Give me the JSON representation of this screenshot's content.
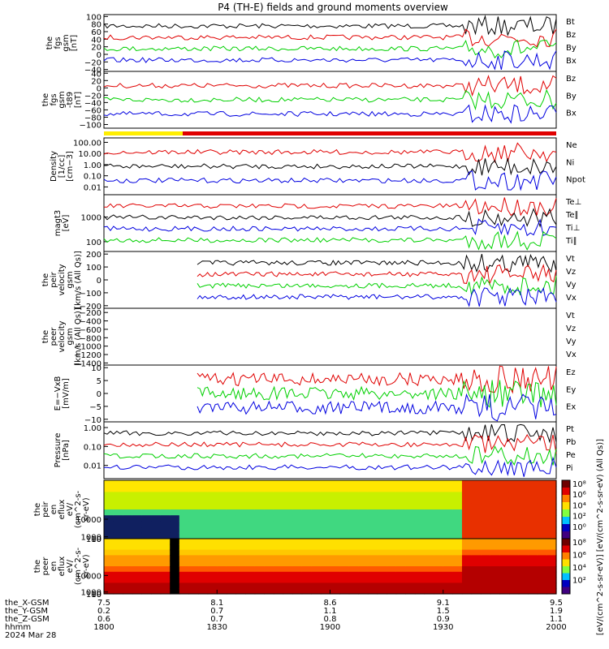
{
  "header": {
    "title": "P4 (TH-E) fields and ground moments overview"
  },
  "colors": {
    "black": "#000000",
    "red": "#e00000",
    "green": "#00d000",
    "blue": "#0000e0",
    "yellow": "#ffee00"
  },
  "time_axis": {
    "hhmm_ticks": [
      "1800",
      "1830",
      "1900",
      "1930",
      "2000"
    ],
    "x_gsm": [
      "7.5",
      "8.1",
      "8.6",
      "9.1",
      "9.5"
    ],
    "y_gsm": [
      "0.2",
      "0.7",
      "1.1",
      "1.5",
      "1.9"
    ],
    "z_gsm": [
      "0.6",
      "0.7",
      "0.8",
      "0.9",
      "1.1"
    ],
    "row_labels": [
      "the_X-GSM",
      "the_Y-GSM",
      "the_Z-GSM",
      "hhmm",
      "2024 Mar 28"
    ]
  },
  "chart_data": [
    {
      "type": "line",
      "id": "fgs",
      "ylabel": [
        "the",
        "fgs",
        "gsm",
        "[nT]"
      ],
      "yticks": [
        "100",
        "80",
        "60",
        "40",
        "20",
        "0",
        "−20",
        "−40"
      ],
      "ylim": [
        -45,
        105
      ],
      "series": [
        {
          "name": "Bt",
          "color": "#000000"
        },
        {
          "name": "Bz",
          "color": "#e00000"
        },
        {
          "name": "By",
          "color": "#00d000"
        },
        {
          "name": "Bx",
          "color": "#0000e0"
        }
      ]
    },
    {
      "type": "line",
      "id": "fgs_t89",
      "ylabel": [
        "the",
        "fgs",
        "gsm",
        "-t89",
        "[nT]"
      ],
      "yticks": [
        "40",
        "20",
        "0",
        "−20",
        "−40",
        "−60",
        "−80",
        "−100"
      ],
      "ylim": [
        -110,
        45
      ],
      "series": [
        {
          "name": "Bz",
          "color": "#e00000"
        },
        {
          "name": "By",
          "color": "#00d000"
        },
        {
          "name": "Bx",
          "color": "#0000e0"
        }
      ]
    },
    {
      "type": "line",
      "id": "density",
      "ylabel": [
        "Density",
        "[1/cc]",
        "[cm−3]"
      ],
      "yticks": [
        "100.00",
        "10.00",
        "1.00",
        "0.10",
        "0.01"
      ],
      "ylim": [
        0.002,
        250
      ],
      "log": true,
      "series": [
        {
          "name": "Ne",
          "color": "#e00000"
        },
        {
          "name": "Ni",
          "color": "#000000"
        },
        {
          "name": "Npot",
          "color": "#0000e0"
        }
      ]
    },
    {
      "type": "line",
      "id": "temp",
      "ylabel": [
        "magt3",
        "[eV]"
      ],
      "yticks": [
        "1000",
        "100"
      ],
      "ylim": [
        40,
        8000
      ],
      "log": true,
      "series": [
        {
          "name": "Te⊥",
          "color": "#e00000"
        },
        {
          "name": "Te∥",
          "color": "#000000"
        },
        {
          "name": "Ti⊥",
          "color": "#0000e0"
        },
        {
          "name": "Ti∥",
          "color": "#00d000"
        }
      ]
    },
    {
      "type": "line",
      "id": "peir_vel",
      "ylabel": [
        "the",
        "peir",
        "velocity",
        "gsm",
        "[km/s (All Qs)]"
      ],
      "yticks": [
        "200",
        "100",
        "0",
        "−100",
        "−200"
      ],
      "ylim": [
        -220,
        220
      ],
      "series": [
        {
          "name": "Vt",
          "color": "#000000"
        },
        {
          "name": "Vz",
          "color": "#e00000"
        },
        {
          "name": "Vy",
          "color": "#00d000"
        },
        {
          "name": "Vx",
          "color": "#0000e0"
        }
      ]
    },
    {
      "type": "line",
      "id": "peer_vel",
      "ylabel": [
        "the",
        "peer",
        "velocity",
        "gsm",
        "[km/s (All Qs)]"
      ],
      "yticks": [
        "−200",
        "−400",
        "−600",
        "−800",
        "−1000",
        "−1200",
        "−1400"
      ],
      "ylim": [
        -1450,
        -100
      ],
      "series": [
        {
          "name": "Vt",
          "color": "#000000"
        },
        {
          "name": "Vz",
          "color": "#e00000"
        },
        {
          "name": "Vy",
          "color": "#00d000"
        },
        {
          "name": "Vx",
          "color": "#0000e0"
        }
      ]
    },
    {
      "type": "line",
      "id": "efield",
      "ylabel": [
        "E=−VxB",
        "[mV/m]"
      ],
      "yticks": [
        "10",
        "5",
        "0",
        "−5",
        "−10"
      ],
      "ylim": [
        -11,
        11
      ],
      "series": [
        {
          "name": "Ez",
          "color": "#e00000"
        },
        {
          "name": "Ey",
          "color": "#00d000"
        },
        {
          "name": "Ex",
          "color": "#0000e0"
        }
      ]
    },
    {
      "type": "line",
      "id": "pressure",
      "ylabel": [
        "Pressure",
        "[nPa]"
      ],
      "yticks": [
        "1.00",
        "0.10",
        "0.01"
      ],
      "ylim": [
        0.002,
        2
      ],
      "log": true,
      "series": [
        {
          "name": "Pt",
          "color": "#000000"
        },
        {
          "name": "Pb",
          "color": "#e00000"
        },
        {
          "name": "Pe",
          "color": "#00d000"
        },
        {
          "name": "Pi",
          "color": "#0000e0"
        }
      ]
    },
    {
      "type": "heatmap",
      "id": "peir_en",
      "ylabel": [
        "the",
        "peir",
        "en",
        "eflux",
        "eV/",
        "(cm^2-s-",
        "sr-eV)"
      ],
      "yticks": [
        "10000",
        "1000",
        "100",
        "10"
      ],
      "ylim": [
        5,
        30000
      ]
    },
    {
      "type": "heatmap",
      "id": "peer_en",
      "ylabel": [
        "the",
        "peer",
        "en",
        "eflux",
        "eV/",
        "(cm^2-s-",
        "sr-eV)"
      ],
      "yticks": [
        "10000",
        "1000",
        "100",
        "10"
      ],
      "ylim": [
        5,
        30000
      ]
    }
  ],
  "colorbars": [
    {
      "ticks": [
        "10⁸",
        "10⁶",
        "10⁴",
        "10²",
        "10⁰"
      ]
    },
    {
      "ticks": [
        "10⁸",
        "10⁶",
        "10⁴",
        "10²"
      ]
    }
  ],
  "colorbar_label": "[eV/(cm^2-s-sr-eV)] [eV/(cm^2-s-sr-eV) (All Qs)]"
}
